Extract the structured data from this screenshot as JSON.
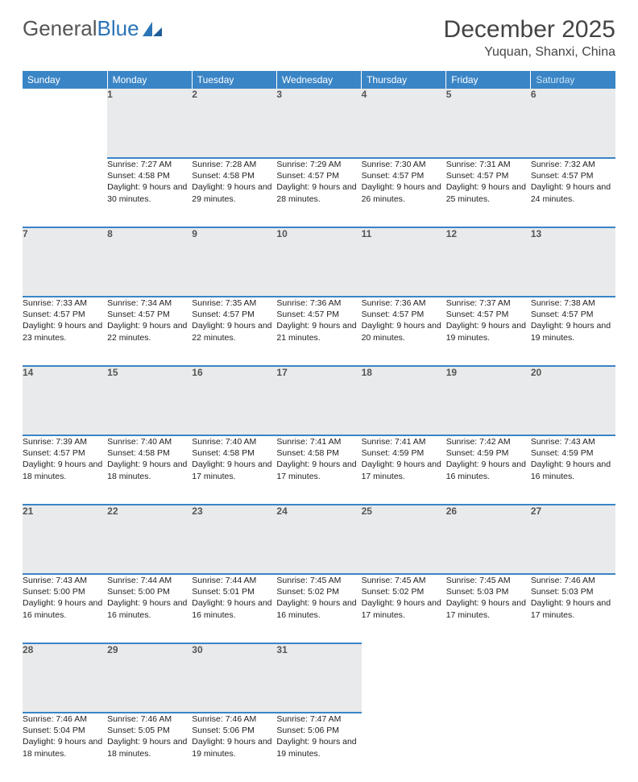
{
  "logo": {
    "text1": "General",
    "text2": "Blue"
  },
  "title": "December 2025",
  "location": "Yuquan, Shanxi, China",
  "colors": {
    "header_bg": "#3a85c6",
    "daynum_bg": "#e9eaeb",
    "rule": "#3a85c6",
    "text": "#222222",
    "muted": "#555555"
  },
  "weekdays": [
    "Sunday",
    "Monday",
    "Tuesday",
    "Wednesday",
    "Thursday",
    "Friday",
    "Saturday"
  ],
  "weeks": [
    [
      null,
      {
        "n": "1",
        "sunrise": "7:27 AM",
        "sunset": "4:58 PM",
        "daylight": "9 hours and 30 minutes."
      },
      {
        "n": "2",
        "sunrise": "7:28 AM",
        "sunset": "4:58 PM",
        "daylight": "9 hours and 29 minutes."
      },
      {
        "n": "3",
        "sunrise": "7:29 AM",
        "sunset": "4:57 PM",
        "daylight": "9 hours and 28 minutes."
      },
      {
        "n": "4",
        "sunrise": "7:30 AM",
        "sunset": "4:57 PM",
        "daylight": "9 hours and 26 minutes."
      },
      {
        "n": "5",
        "sunrise": "7:31 AM",
        "sunset": "4:57 PM",
        "daylight": "9 hours and 25 minutes."
      },
      {
        "n": "6",
        "sunrise": "7:32 AM",
        "sunset": "4:57 PM",
        "daylight": "9 hours and 24 minutes."
      }
    ],
    [
      {
        "n": "7",
        "sunrise": "7:33 AM",
        "sunset": "4:57 PM",
        "daylight": "9 hours and 23 minutes."
      },
      {
        "n": "8",
        "sunrise": "7:34 AM",
        "sunset": "4:57 PM",
        "daylight": "9 hours and 22 minutes."
      },
      {
        "n": "9",
        "sunrise": "7:35 AM",
        "sunset": "4:57 PM",
        "daylight": "9 hours and 22 minutes."
      },
      {
        "n": "10",
        "sunrise": "7:36 AM",
        "sunset": "4:57 PM",
        "daylight": "9 hours and 21 minutes."
      },
      {
        "n": "11",
        "sunrise": "7:36 AM",
        "sunset": "4:57 PM",
        "daylight": "9 hours and 20 minutes."
      },
      {
        "n": "12",
        "sunrise": "7:37 AM",
        "sunset": "4:57 PM",
        "daylight": "9 hours and 19 minutes."
      },
      {
        "n": "13",
        "sunrise": "7:38 AM",
        "sunset": "4:57 PM",
        "daylight": "9 hours and 19 minutes."
      }
    ],
    [
      {
        "n": "14",
        "sunrise": "7:39 AM",
        "sunset": "4:57 PM",
        "daylight": "9 hours and 18 minutes."
      },
      {
        "n": "15",
        "sunrise": "7:40 AM",
        "sunset": "4:58 PM",
        "daylight": "9 hours and 18 minutes."
      },
      {
        "n": "16",
        "sunrise": "7:40 AM",
        "sunset": "4:58 PM",
        "daylight": "9 hours and 17 minutes."
      },
      {
        "n": "17",
        "sunrise": "7:41 AM",
        "sunset": "4:58 PM",
        "daylight": "9 hours and 17 minutes."
      },
      {
        "n": "18",
        "sunrise": "7:41 AM",
        "sunset": "4:59 PM",
        "daylight": "9 hours and 17 minutes."
      },
      {
        "n": "19",
        "sunrise": "7:42 AM",
        "sunset": "4:59 PM",
        "daylight": "9 hours and 16 minutes."
      },
      {
        "n": "20",
        "sunrise": "7:43 AM",
        "sunset": "4:59 PM",
        "daylight": "9 hours and 16 minutes."
      }
    ],
    [
      {
        "n": "21",
        "sunrise": "7:43 AM",
        "sunset": "5:00 PM",
        "daylight": "9 hours and 16 minutes."
      },
      {
        "n": "22",
        "sunrise": "7:44 AM",
        "sunset": "5:00 PM",
        "daylight": "9 hours and 16 minutes."
      },
      {
        "n": "23",
        "sunrise": "7:44 AM",
        "sunset": "5:01 PM",
        "daylight": "9 hours and 16 minutes."
      },
      {
        "n": "24",
        "sunrise": "7:45 AM",
        "sunset": "5:02 PM",
        "daylight": "9 hours and 16 minutes."
      },
      {
        "n": "25",
        "sunrise": "7:45 AM",
        "sunset": "5:02 PM",
        "daylight": "9 hours and 17 minutes."
      },
      {
        "n": "26",
        "sunrise": "7:45 AM",
        "sunset": "5:03 PM",
        "daylight": "9 hours and 17 minutes."
      },
      {
        "n": "27",
        "sunrise": "7:46 AM",
        "sunset": "5:03 PM",
        "daylight": "9 hours and 17 minutes."
      }
    ],
    [
      {
        "n": "28",
        "sunrise": "7:46 AM",
        "sunset": "5:04 PM",
        "daylight": "9 hours and 18 minutes."
      },
      {
        "n": "29",
        "sunrise": "7:46 AM",
        "sunset": "5:05 PM",
        "daylight": "9 hours and 18 minutes."
      },
      {
        "n": "30",
        "sunrise": "7:46 AM",
        "sunset": "5:06 PM",
        "daylight": "9 hours and 19 minutes."
      },
      {
        "n": "31",
        "sunrise": "7:47 AM",
        "sunset": "5:06 PM",
        "daylight": "9 hours and 19 minutes."
      },
      null,
      null,
      null
    ]
  ]
}
